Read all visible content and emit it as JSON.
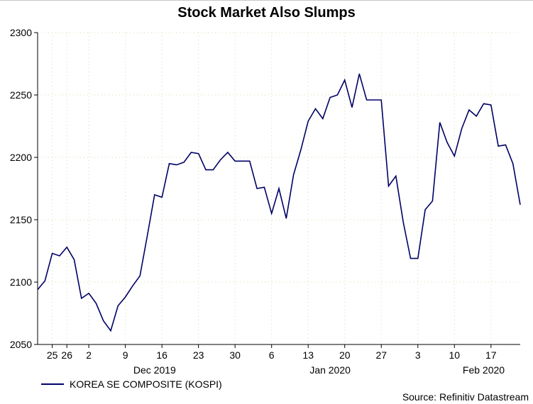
{
  "chart_data": {
    "type": "line",
    "title": "Stock Market Also Slumps",
    "source": "Source: Refinitiv Datastream",
    "ylim": [
      2050,
      2300
    ],
    "y_ticks": [
      2050,
      2100,
      2150,
      2200,
      2250,
      2300
    ],
    "x_range": [
      0,
      66
    ],
    "x_ticks": [
      {
        "label": "25",
        "x": 2
      },
      {
        "label": "26",
        "x": 4
      },
      {
        "label": "2",
        "x": 7
      },
      {
        "label": "9",
        "x": 12
      },
      {
        "label": "16",
        "x": 17
      },
      {
        "label": "23",
        "x": 22
      },
      {
        "label": "30",
        "x": 27
      },
      {
        "label": "6",
        "x": 32
      },
      {
        "label": "13",
        "x": 37
      },
      {
        "label": "20",
        "x": 42
      },
      {
        "label": "27",
        "x": 47
      },
      {
        "label": "3",
        "x": 52
      },
      {
        "label": "10",
        "x": 57
      },
      {
        "label": "17",
        "x": 62
      }
    ],
    "month_labels": [
      {
        "label": "Dec 2019",
        "x": 16
      },
      {
        "label": "Jan 2020",
        "x": 40
      },
      {
        "label": "Feb 2020",
        "x": 61
      }
    ],
    "series": [
      {
        "name": "KOREA SE COMPOSITE (KOSPI)",
        "color": "#000066",
        "x": [
          0,
          1,
          2,
          3,
          4,
          5,
          6,
          7,
          8,
          9,
          10,
          11,
          12,
          13,
          14,
          15,
          16,
          17,
          18,
          19,
          20,
          21,
          22,
          23,
          24,
          25,
          26,
          27,
          28,
          29,
          30,
          31,
          32,
          33,
          34,
          35,
          36,
          37,
          38,
          39,
          40,
          41,
          42,
          43,
          44,
          45,
          46,
          47,
          48,
          49,
          50,
          51,
          52,
          53,
          54,
          55,
          56,
          57,
          58,
          59,
          60,
          61,
          62,
          63,
          64,
          65,
          66
        ],
        "values": [
          2094,
          2101,
          2123,
          2121,
          2128,
          2118,
          2087,
          2091,
          2083,
          2069,
          2061,
          2081,
          2088,
          2097,
          2105,
          2137,
          2170,
          2168,
          2195,
          2194,
          2196,
          2204,
          2203,
          2190,
          2190,
          2198,
          2204,
          2197,
          2197,
          2197,
          2175,
          2176,
          2155,
          2175,
          2151,
          2186,
          2206,
          2229,
          2239,
          2231,
          2248,
          2250,
          2262,
          2240,
          2267,
          2246,
          2246,
          2246,
          2177,
          2185,
          2148,
          2119,
          2119,
          2158,
          2165,
          2228,
          2212,
          2201,
          2223,
          2238,
          2233,
          2243,
          2242,
          2209,
          2210,
          2195,
          2162
        ]
      }
    ]
  }
}
